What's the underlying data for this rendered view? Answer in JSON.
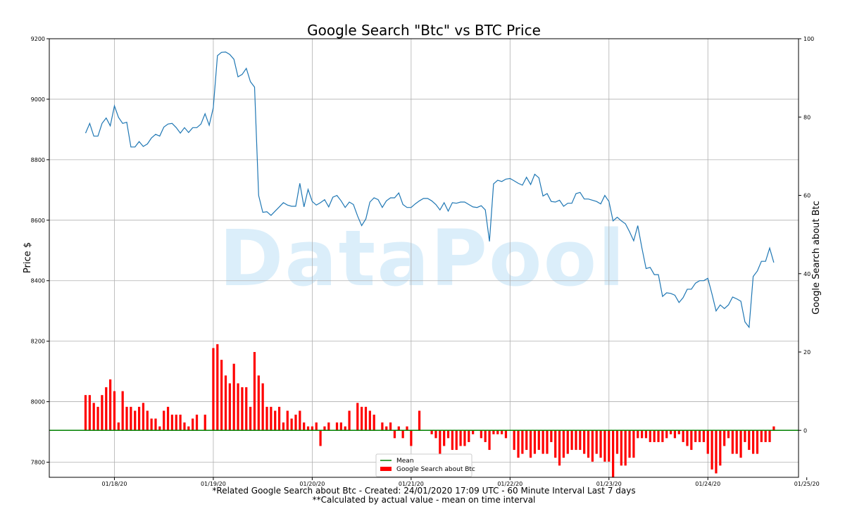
{
  "chart_data": {
    "type": "line+bar",
    "title": "Google Search \"Btc\" vs BTC Price",
    "ylabel_left": "Price $",
    "ylabel_right": "Google Search about Btc",
    "y_left_ticks": [
      7800,
      8000,
      8200,
      8400,
      8600,
      8800,
      9000,
      9200
    ],
    "y_right_ticks": [
      0,
      20,
      40,
      60,
      80,
      100
    ],
    "ylim_left": [
      7750,
      9200
    ],
    "ylim_right": [
      -12,
      100
    ],
    "xlim": [
      -8.8,
      173
    ],
    "x_ticks": [
      {
        "pos": 7,
        "label": "01/18/20"
      },
      {
        "pos": 31,
        "label": "01/19/20"
      },
      {
        "pos": 55,
        "label": "01/20/20"
      },
      {
        "pos": 79,
        "label": "01/21/20"
      },
      {
        "pos": 103,
        "label": "01/22/20"
      },
      {
        "pos": 127,
        "label": "01/23/20"
      },
      {
        "pos": 151,
        "label": "01/24/20"
      },
      {
        "pos": 175,
        "label": "01/25/20"
      }
    ],
    "grid": true,
    "legend_position": "lower-center",
    "series": [
      {
        "name": "BTC Price",
        "type": "line",
        "axis": "left",
        "color": "#1f77b4",
        "values": [
          8888,
          8920,
          8878,
          8878,
          8920,
          8938,
          8912,
          8978,
          8940,
          8920,
          8924,
          8842,
          8842,
          8860,
          8844,
          8852,
          8872,
          8884,
          8878,
          8908,
          8918,
          8920,
          8906,
          8888,
          8906,
          8890,
          8906,
          8906,
          8918,
          8952,
          8914,
          8972,
          9144,
          9155,
          9156,
          9148,
          9132,
          9074,
          9082,
          9102,
          9058,
          9040,
          8682,
          8626,
          8628,
          8616,
          8630,
          8644,
          8658,
          8650,
          8646,
          8646,
          8722,
          8644,
          8702,
          8662,
          8650,
          8658,
          8668,
          8644,
          8676,
          8682,
          8664,
          8642,
          8660,
          8652,
          8614,
          8582,
          8604,
          8660,
          8674,
          8668,
          8642,
          8664,
          8674,
          8674,
          8690,
          8652,
          8642,
          8642,
          8654,
          8664,
          8672,
          8672,
          8664,
          8652,
          8634,
          8658,
          8630,
          8658,
          8656,
          8660,
          8660,
          8652,
          8644,
          8642,
          8648,
          8634,
          8530,
          8720,
          8732,
          8728,
          8736,
          8738,
          8730,
          8722,
          8716,
          8742,
          8718,
          8752,
          8740,
          8680,
          8688,
          8662,
          8660,
          8666,
          8646,
          8656,
          8656,
          8688,
          8692,
          8670,
          8670,
          8666,
          8662,
          8654,
          8682,
          8662,
          8598,
          8610,
          8598,
          8588,
          8562,
          8532,
          8582,
          8508,
          8440,
          8444,
          8420,
          8420,
          8348,
          8360,
          8358,
          8352,
          8328,
          8344,
          8372,
          8372,
          8392,
          8400,
          8400,
          8408,
          8356,
          8300,
          8320,
          8308,
          8320,
          8346,
          8340,
          8332,
          8264,
          8246,
          8414,
          8432,
          8464,
          8464,
          8508,
          8460
        ]
      },
      {
        "name": "Google Search about Btc",
        "type": "bar",
        "axis": "right",
        "color": "#ff0000",
        "values": [
          9,
          9,
          7,
          6,
          9,
          11,
          13,
          10,
          2,
          10,
          6,
          6,
          5,
          6,
          7,
          5,
          3,
          3,
          1,
          5,
          6,
          4,
          4,
          4,
          2,
          1,
          3,
          4,
          0,
          4,
          0,
          21,
          22,
          18,
          14,
          12,
          17,
          12,
          11,
          11,
          6,
          20,
          14,
          12,
          6,
          6,
          5,
          6,
          2,
          5,
          3,
          4,
          5,
          2,
          1,
          1,
          2,
          -4,
          1,
          2,
          0,
          2,
          2,
          1,
          5,
          0,
          7,
          6,
          6,
          5,
          4,
          0,
          2,
          1,
          2,
          -2,
          1,
          -2,
          1,
          -4,
          0,
          5,
          0,
          0,
          -1,
          -2,
          -6,
          -4,
          -2,
          -5,
          -5,
          -4,
          -4,
          -3,
          -1,
          0,
          -2,
          -3,
          -5,
          -1,
          -1,
          -1,
          -2,
          0,
          -5,
          -7,
          -6,
          -5,
          -7,
          -6,
          -5,
          -6,
          -6,
          -3,
          -7,
          -9,
          -7,
          -6,
          -5,
          -5,
          -5,
          -6,
          -7,
          -8,
          -6,
          -7,
          -8,
          -8,
          -12,
          -6,
          -9,
          -9,
          -7,
          -7,
          -2,
          -2,
          -2,
          -3,
          -3,
          -3,
          -3,
          -2,
          -1,
          -2,
          -1,
          -3,
          -4,
          -5,
          -3,
          -3,
          -3,
          -6,
          -10,
          -11,
          -9,
          -4,
          -2,
          -6,
          -6,
          -7,
          -3,
          -5,
          -6,
          -6,
          -3,
          -3,
          -3,
          1
        ]
      },
      {
        "name": "Mean",
        "type": "line",
        "axis": "right",
        "color": "#008000",
        "value": 0
      }
    ],
    "footnotes": [
      "*Related Google Search about Btc  -  Created: 24/01/2020 17:09 UTC - 60 Minute Interval Last 7 days",
      "**Calculated by actual value - mean on time interval"
    ],
    "watermark": "DataPool"
  }
}
